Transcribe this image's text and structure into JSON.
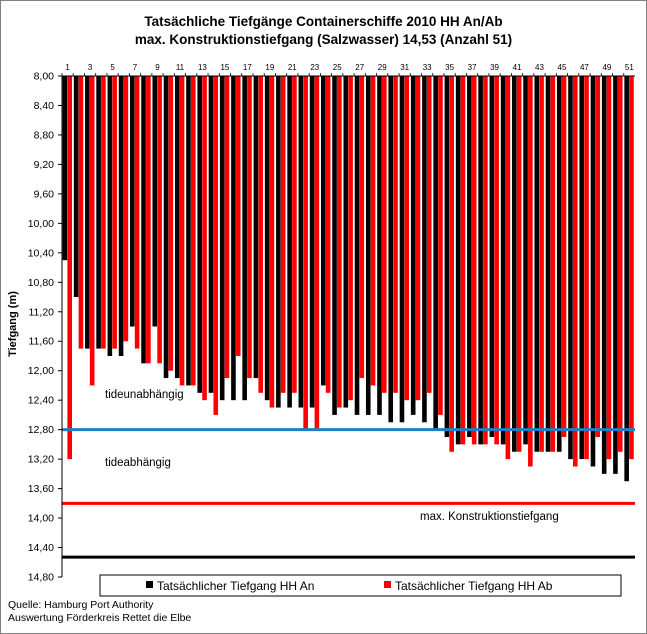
{
  "chart_data": {
    "type": "bar",
    "title": "Tatsächliche Tiefgänge Containerschiffe 2010 HH An/Ab",
    "subtitle": "max. Konstruktionstiefgang (Salzwasser) 14,53 (Anzahl 51)",
    "ylabel": "Tiefgang (m)",
    "ylim": [
      8.0,
      14.8
    ],
    "y_inverted": true,
    "y_ticks": [
      "8,00",
      "8,40",
      "8,80",
      "9,20",
      "9,60",
      "10,00",
      "10,40",
      "10,80",
      "11,20",
      "11,60",
      "12,00",
      "12,40",
      "12,80",
      "13,20",
      "13,60",
      "14,00",
      "14,40",
      "14,80"
    ],
    "x_axis_position": "top",
    "x_tick_labels": [
      "1",
      "3",
      "5",
      "7",
      "9",
      "11",
      "13",
      "15",
      "17",
      "19",
      "21",
      "23",
      "25",
      "27",
      "29",
      "31",
      "33",
      "35",
      "37",
      "39",
      "41",
      "43",
      "45",
      "47",
      "49",
      "51"
    ],
    "categories": [
      1,
      2,
      3,
      4,
      5,
      6,
      7,
      8,
      9,
      10,
      11,
      12,
      13,
      14,
      15,
      16,
      17,
      18,
      19,
      20,
      21,
      22,
      23,
      24,
      25,
      26,
      27,
      28,
      29,
      30,
      31,
      32,
      33,
      34,
      35,
      36,
      37,
      38,
      39,
      40,
      41,
      42,
      43,
      44,
      45,
      46,
      47,
      48,
      49,
      50,
      51
    ],
    "series": [
      {
        "name": "Tatsächlicher Tiefgang HH An",
        "color": "#000000",
        "values": [
          10.5,
          11.0,
          11.7,
          11.7,
          11.8,
          11.8,
          11.4,
          11.9,
          11.4,
          12.1,
          12.1,
          12.2,
          12.3,
          12.3,
          12.4,
          12.4,
          12.4,
          12.1,
          12.4,
          12.5,
          12.5,
          12.5,
          12.5,
          12.2,
          12.6,
          12.5,
          12.6,
          12.6,
          12.6,
          12.7,
          12.7,
          12.6,
          12.7,
          12.8,
          12.9,
          13.0,
          12.9,
          13.0,
          12.9,
          13.0,
          13.1,
          13.0,
          13.1,
          13.1,
          13.1,
          13.2,
          13.2,
          13.3,
          13.4,
          13.4,
          13.5
        ]
      },
      {
        "name": "Tatsächlicher Tiefgang HH Ab",
        "color": "#ff0000",
        "values": [
          13.2,
          11.7,
          12.2,
          11.7,
          11.7,
          11.6,
          11.7,
          11.9,
          11.9,
          12.0,
          12.2,
          12.2,
          12.4,
          12.6,
          12.1,
          11.8,
          12.1,
          12.3,
          12.5,
          12.3,
          12.3,
          12.8,
          12.8,
          12.3,
          12.5,
          12.4,
          12.1,
          12.2,
          12.3,
          12.3,
          12.4,
          12.4,
          12.3,
          12.6,
          13.1,
          13.0,
          13.0,
          13.0,
          13.0,
          13.2,
          13.1,
          13.3,
          13.1,
          13.1,
          12.9,
          13.3,
          13.2,
          12.9,
          13.2,
          13.1,
          13.2
        ]
      }
    ],
    "reference_lines": [
      {
        "value": 12.8,
        "color": "#1f7fc4"
      },
      {
        "value": 13.8,
        "color": "#ff0000"
      },
      {
        "value": 14.53,
        "color": "#000000"
      }
    ],
    "annotations": {
      "tideunabhaengig": "tideunabhängig",
      "tideabhaengig": "tideabhängig",
      "max_konstruktion": "max. Konstruktionstiefgang"
    },
    "legend_position": "bottom",
    "grid": false
  },
  "footer": {
    "source": "Quelle: Hamburg Port Authority",
    "evaluation": "Auswertung Förderkreis Rettet die Elbe"
  }
}
